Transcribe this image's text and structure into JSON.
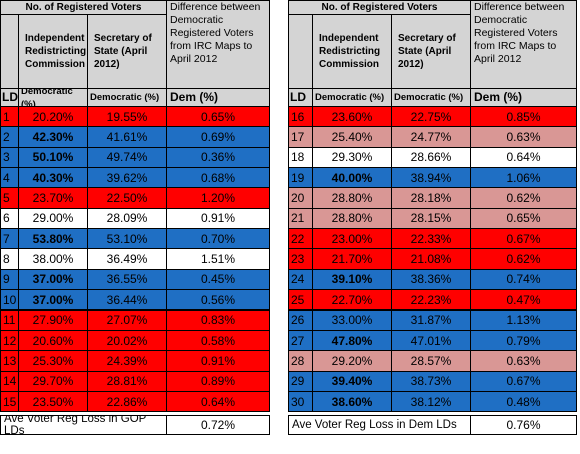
{
  "tables": [
    {
      "header": {
        "group": "No. of Registered Voters",
        "diff": "Difference between Democratic Registered Voters from IRC Maps to April 2012",
        "col1": "Independent Redistricting Commission",
        "col2": "Secretary of State (April 2012)",
        "ld": "LD",
        "sub1": "Democratic (%)",
        "sub2": "Democratic (%)",
        "sub3": "Dem (%)"
      },
      "rows": [
        {
          "ld": 1,
          "irc": "20.20%",
          "sos": "19.55%",
          "diff": "0.65%",
          "color": "#ff0000",
          "bold": false
        },
        {
          "ld": 2,
          "irc": "42.30%",
          "sos": "41.61%",
          "diff": "0.69%",
          "color": "#1f6fc4",
          "bold": true
        },
        {
          "ld": 3,
          "irc": "50.10%",
          "sos": "49.74%",
          "diff": "0.36%",
          "color": "#1f6fc4",
          "bold": true
        },
        {
          "ld": 4,
          "irc": "40.30%",
          "sos": "39.62%",
          "diff": "0.68%",
          "color": "#1f6fc4",
          "bold": true
        },
        {
          "ld": 5,
          "irc": "23.70%",
          "sos": "22.50%",
          "diff": "1.20%",
          "color": "#ff0000",
          "bold": false
        },
        {
          "ld": 6,
          "irc": "29.00%",
          "sos": "28.09%",
          "diff": "0.91%",
          "color": "#ffffff",
          "bold": false
        },
        {
          "ld": 7,
          "irc": "53.80%",
          "sos": "53.10%",
          "diff": "0.70%",
          "color": "#1f6fc4",
          "bold": true
        },
        {
          "ld": 8,
          "irc": "38.00%",
          "sos": "36.49%",
          "diff": "1.51%",
          "color": "#ffffff",
          "bold": false
        },
        {
          "ld": 9,
          "irc": "37.00%",
          "sos": "36.55%",
          "diff": "0.45%",
          "color": "#1f6fc4",
          "bold": true
        },
        {
          "ld": 10,
          "irc": "37.00%",
          "sos": "36.44%",
          "diff": "0.56%",
          "color": "#1f6fc4",
          "bold": true
        },
        {
          "ld": 11,
          "irc": "27.90%",
          "sos": "27.07%",
          "diff": "0.83%",
          "color": "#ff0000",
          "bold": false
        },
        {
          "ld": 12,
          "irc": "20.60%",
          "sos": "20.02%",
          "diff": "0.58%",
          "color": "#ff0000",
          "bold": false
        },
        {
          "ld": 13,
          "irc": "25.30%",
          "sos": "24.39%",
          "diff": "0.91%",
          "color": "#ff0000",
          "bold": false
        },
        {
          "ld": 14,
          "irc": "29.70%",
          "sos": "28.81%",
          "diff": "0.89%",
          "color": "#ff0000",
          "bold": false
        },
        {
          "ld": 15,
          "irc": "23.50%",
          "sos": "22.86%",
          "diff": "0.64%",
          "color": "#ff0000",
          "bold": false
        }
      ],
      "footer": {
        "label": "Ave Voter Reg Loss in GOP LDs",
        "value": "0.72%"
      }
    },
    {
      "header": {
        "group": "No. of Registered Voters",
        "diff": "Difference between Democratic Registered Voters from IRC Maps to April 2012",
        "col1": "Independent Redistricting Commission",
        "col2": "Secretary of State (April 2012)",
        "ld": "LD",
        "sub1": "Democratic (%)",
        "sub2": "Democratic (%)",
        "sub3": "Dem (%)"
      },
      "rows": [
        {
          "ld": 16,
          "irc": "23.60%",
          "sos": "22.75%",
          "diff": "0.85%",
          "color": "#ff0000",
          "bold": false
        },
        {
          "ld": 17,
          "irc": "25.40%",
          "sos": "24.77%",
          "diff": "0.63%",
          "color": "#d99795",
          "bold": false
        },
        {
          "ld": 18,
          "irc": "29.30%",
          "sos": "28.66%",
          "diff": "0.64%",
          "color": "#ffffff",
          "bold": false
        },
        {
          "ld": 19,
          "irc": "40.00%",
          "sos": "38.94%",
          "diff": "1.06%",
          "color": "#1f6fc4",
          "bold": true
        },
        {
          "ld": 20,
          "irc": "28.80%",
          "sos": "28.18%",
          "diff": "0.62%",
          "color": "#d99795",
          "bold": false
        },
        {
          "ld": 21,
          "irc": "28.80%",
          "sos": "28.15%",
          "diff": "0.65%",
          "color": "#d99795",
          "bold": false
        },
        {
          "ld": 22,
          "irc": "23.00%",
          "sos": "22.33%",
          "diff": "0.67%",
          "color": "#ff0000",
          "bold": false
        },
        {
          "ld": 23,
          "irc": "21.70%",
          "sos": "21.08%",
          "diff": "0.62%",
          "color": "#ff0000",
          "bold": false
        },
        {
          "ld": 24,
          "irc": "39.10%",
          "sos": "38.36%",
          "diff": "0.74%",
          "color": "#1f6fc4",
          "bold": true
        },
        {
          "ld": 25,
          "irc": "22.70%",
          "sos": "22.23%",
          "diff": "0.47%",
          "color": "#ff0000",
          "bold": false
        },
        {
          "ld": 26,
          "irc": "33.00%",
          "sos": "31.87%",
          "diff": "1.13%",
          "color": "#1f6fc4",
          "bold": false
        },
        {
          "ld": 27,
          "irc": "47.80%",
          "sos": "47.01%",
          "diff": "0.79%",
          "color": "#1f6fc4",
          "bold": true
        },
        {
          "ld": 28,
          "irc": "29.20%",
          "sos": "28.57%",
          "diff": "0.63%",
          "color": "#d99795",
          "bold": false
        },
        {
          "ld": 29,
          "irc": "39.40%",
          "sos": "38.73%",
          "diff": "0.67%",
          "color": "#1f6fc4",
          "bold": true
        },
        {
          "ld": 30,
          "irc": "38.60%",
          "sos": "38.12%",
          "diff": "0.48%",
          "color": "#1f6fc4",
          "bold": true
        }
      ],
      "footer": {
        "label": "Ave Voter Reg Loss in Dem LDs",
        "value": "0.76%"
      }
    }
  ]
}
